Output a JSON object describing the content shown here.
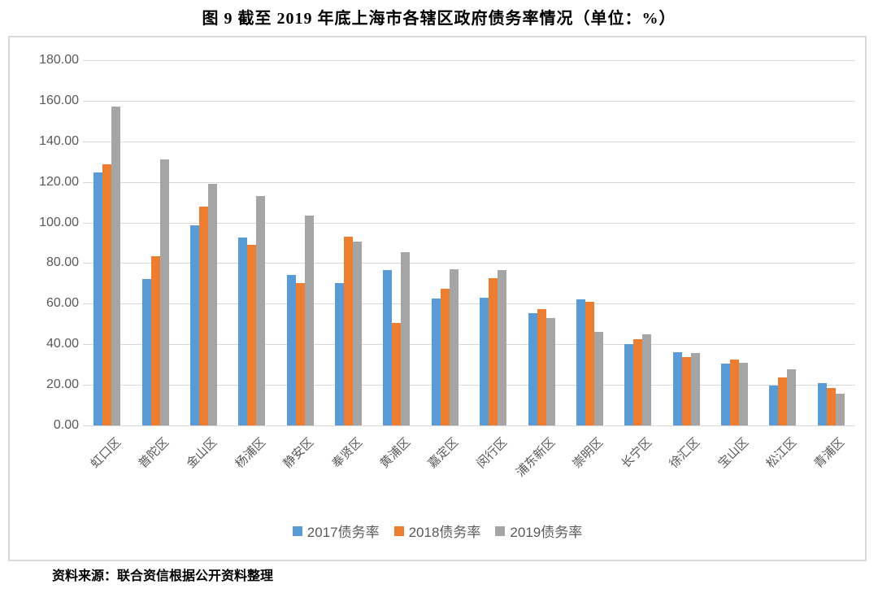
{
  "page": {
    "title": "图 9  截至 2019 年底上海市各辖区政府债务率情况（单位：%）",
    "source_note": "资料来源：联合资信根据公开资料整理"
  },
  "chart_data": {
    "type": "bar",
    "title": "图 9  截至 2019 年底上海市各辖区政府债务率情况（单位：%）",
    "unit": "%",
    "categories": [
      "虹口区",
      "普陀区",
      "金山区",
      "杨浦区",
      "静安区",
      "奉贤区",
      "黄浦区",
      "嘉定区",
      "闵行区",
      "浦东新区",
      "崇明区",
      "长宁区",
      "徐汇区",
      "宝山区",
      "松江区",
      "青浦区"
    ],
    "series": [
      {
        "name": "2017债务率",
        "color": "#5B9BD5",
        "values": [
          124.5,
          72.0,
          98.5,
          92.5,
          74.0,
          70.0,
          76.5,
          62.5,
          63.0,
          55.5,
          62.0,
          40.0,
          36.0,
          30.5,
          19.5,
          21.0
        ]
      },
      {
        "name": "2018债务率",
        "color": "#ED7D31",
        "values": [
          128.8,
          83.5,
          108.0,
          89.0,
          70.0,
          93.0,
          50.5,
          67.5,
          72.5,
          57.5,
          61.0,
          42.5,
          33.5,
          32.5,
          23.5,
          18.5
        ]
      },
      {
        "name": "2019债务率",
        "color": "#A5A5A5",
        "values": [
          157.0,
          131.0,
          119.0,
          113.0,
          103.5,
          90.5,
          85.5,
          77.0,
          76.5,
          53.0,
          46.0,
          45.0,
          35.5,
          31.0,
          27.5,
          15.5
        ]
      }
    ],
    "ylim": [
      0,
      180
    ],
    "ytick_step": 20,
    "ytick_decimals": 2,
    "grid": true,
    "legend_position": "bottom",
    "gridline_color": "#D9D9D9",
    "axis_text_color": "#595959",
    "frame_border_color": "#D9D9D9"
  }
}
